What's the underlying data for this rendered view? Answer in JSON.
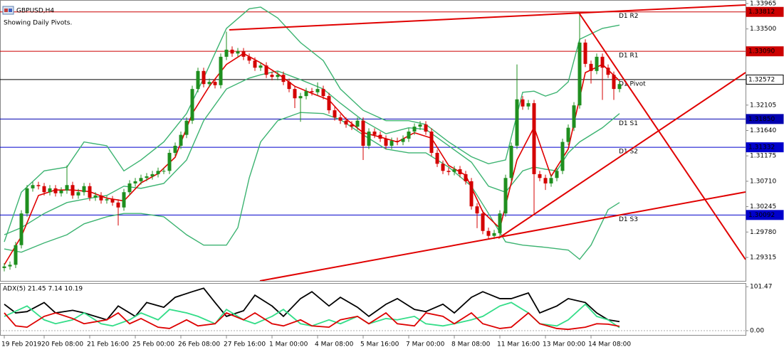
{
  "chart_data": {
    "type": "candlestick",
    "title": "GBPUSD,H4",
    "subtitle": "Showing Daily Pivots.",
    "up_color": "#1f8f1f",
    "down_color": "#d40000",
    "categories": [
      "19 Feb 2019",
      null,
      null,
      null,
      null,
      null,
      null,
      "20 Feb 08:00",
      null,
      null,
      null,
      null,
      null,
      null,
      null,
      "21 Feb 16:00",
      null,
      null,
      null,
      null,
      null,
      null,
      null,
      "25 Feb 00:00",
      null,
      null,
      null,
      null,
      null,
      null,
      null,
      "26 Feb 08:00",
      null,
      null,
      null,
      null,
      null,
      null,
      null,
      "27 Feb 16:00",
      null,
      null,
      null,
      null,
      null,
      null,
      null,
      "1 Mar 00:00",
      null,
      null,
      null,
      null,
      null,
      null,
      null,
      "4 Mar 08:00",
      null,
      null,
      null,
      null,
      null,
      null,
      null,
      "5 Mar 16:00",
      null,
      null,
      null,
      null,
      null,
      null,
      null,
      "7 Mar 00:00",
      null,
      null,
      null,
      null,
      null,
      null,
      null,
      "8 Mar 08:00",
      null,
      null,
      null,
      null,
      null,
      null,
      null,
      "11 Mar 16:00",
      null,
      null,
      null,
      null,
      null,
      null,
      null,
      "13 Mar 00:00",
      null,
      null,
      null,
      null,
      null,
      null,
      null,
      "14 Mar 08:00",
      null,
      null,
      null,
      null,
      null
    ],
    "open": [
      1.2912,
      1.2915,
      1.2918,
      1.2954,
      1.3012,
      1.3058,
      1.3064,
      1.3062,
      1.3051,
      1.3058,
      1.3049,
      1.3054,
      1.3064,
      1.3045,
      1.3051,
      1.3062,
      1.3041,
      1.3045,
      1.3036,
      1.3038,
      1.3032,
      1.3023,
      1.3051,
      1.3067,
      1.3071,
      1.3077,
      1.308,
      1.3084,
      1.309,
      1.309,
      1.3123,
      1.3136,
      1.3156,
      1.3182,
      1.324,
      1.3273,
      1.3249,
      1.3253,
      1.3247,
      1.3299,
      1.3312,
      1.3305,
      1.3309,
      1.3299,
      1.3292,
      1.3279,
      1.3283,
      1.3266,
      1.3262,
      1.3266,
      1.3253,
      1.324,
      1.3223,
      1.3227,
      1.3236,
      1.3234,
      1.324,
      1.3227,
      1.3201,
      1.3188,
      1.3182,
      1.3175,
      1.3171,
      1.3182,
      1.3136,
      1.3162,
      1.3156,
      1.3149,
      1.3136,
      1.3145,
      1.3143,
      1.3149,
      1.3162,
      1.3171,
      1.3175,
      1.3162,
      1.3123,
      1.3103,
      1.309,
      1.3088,
      1.3093,
      1.3084,
      1.3071,
      1.3025,
      1.3012,
      1.298,
      1.2971,
      1.2976,
      1.3012,
      1.3077,
      1.3136,
      1.3221,
      1.3208,
      1.3214,
      1.3084,
      1.3077,
      1.3067,
      1.3077,
      1.309,
      1.3143,
      1.3169,
      1.321,
      1.3325,
      1.3286,
      1.3273,
      1.3299,
      1.3279,
      1.3266,
      1.324
    ],
    "high": [
      1.2921,
      1.2924,
      1.296,
      1.3018,
      1.3064,
      1.307,
      1.307,
      1.3068,
      1.3064,
      1.3064,
      1.306,
      1.31,
      1.307,
      1.3057,
      1.3068,
      1.3068,
      1.3051,
      1.3051,
      1.3044,
      1.3044,
      1.3038,
      1.3057,
      1.3073,
      1.3077,
      1.3083,
      1.3086,
      1.309,
      1.3096,
      1.3096,
      1.3129,
      1.3142,
      1.3162,
      1.3188,
      1.3246,
      1.3279,
      1.3279,
      1.3259,
      1.3259,
      1.3305,
      1.3345,
      1.3318,
      1.3315,
      1.3315,
      1.3305,
      1.3298,
      1.3289,
      1.3289,
      1.3272,
      1.3272,
      1.3272,
      1.3259,
      1.3246,
      1.3233,
      1.3242,
      1.3242,
      1.3252,
      1.3246,
      1.3233,
      1.3207,
      1.3194,
      1.3188,
      1.3181,
      1.3188,
      1.3188,
      1.3168,
      1.3168,
      1.3162,
      1.3155,
      1.3151,
      1.3151,
      1.3155,
      1.3168,
      1.3177,
      1.3181,
      1.3181,
      1.3168,
      1.3129,
      1.3109,
      1.3096,
      1.3099,
      1.3099,
      1.309,
      1.3077,
      1.3031,
      1.3018,
      1.2986,
      1.2982,
      1.3018,
      1.3083,
      1.3142,
      1.3285,
      1.3227,
      1.322,
      1.322,
      1.309,
      1.3083,
      1.3083,
      1.3096,
      1.3149,
      1.3175,
      1.3216,
      1.3381,
      1.3331,
      1.3292,
      1.3305,
      1.3305,
      1.3285,
      1.3272,
      1.3255
    ],
    "low": [
      1.2906,
      1.2909,
      1.2912,
      1.2948,
      1.3006,
      1.3052,
      1.3056,
      1.3045,
      1.3045,
      1.3043,
      1.3043,
      1.3048,
      1.3039,
      1.3039,
      1.3045,
      1.3035,
      1.3035,
      1.303,
      1.303,
      1.3026,
      1.299,
      1.3017,
      1.3045,
      1.3061,
      1.3065,
      1.3071,
      1.3074,
      1.3078,
      1.3084,
      1.3084,
      1.3117,
      1.313,
      1.315,
      1.3176,
      1.3234,
      1.3243,
      1.3243,
      1.3241,
      1.3241,
      1.3293,
      1.3299,
      1.3299,
      1.3293,
      1.3286,
      1.3273,
      1.3273,
      1.326,
      1.3256,
      1.3256,
      1.3247,
      1.3234,
      1.3205,
      1.318,
      1.3221,
      1.3228,
      1.3228,
      1.3221,
      1.3195,
      1.3182,
      1.3176,
      1.3169,
      1.3165,
      1.3165,
      1.311,
      1.313,
      1.315,
      1.3143,
      1.313,
      1.313,
      1.3137,
      1.3137,
      1.3143,
      1.3156,
      1.3165,
      1.3156,
      1.3117,
      1.3097,
      1.3084,
      1.3082,
      1.3082,
      1.3078,
      1.3065,
      1.3019,
      1.2985,
      1.2974,
      1.2965,
      1.2965,
      1.297,
      1.3006,
      1.3071,
      1.313,
      1.3202,
      1.3202,
      1.3012,
      1.3071,
      1.3055,
      1.3061,
      1.3071,
      1.3084,
      1.3137,
      1.3163,
      1.3204,
      1.328,
      1.325,
      1.3267,
      1.322,
      1.326,
      1.322,
      1.3234
    ],
    "close": [
      1.2915,
      1.2918,
      1.2954,
      1.3012,
      1.3058,
      1.3064,
      1.3062,
      1.3051,
      1.3058,
      1.3049,
      1.3054,
      1.3064,
      1.3045,
      1.3051,
      1.3062,
      1.3041,
      1.3045,
      1.3036,
      1.3038,
      1.3032,
      1.3023,
      1.3051,
      1.3067,
      1.3071,
      1.3077,
      1.308,
      1.3084,
      1.309,
      1.309,
      1.3123,
      1.3136,
      1.3156,
      1.3182,
      1.324,
      1.3273,
      1.3249,
      1.3253,
      1.3247,
      1.3299,
      1.3312,
      1.3305,
      1.3309,
      1.3299,
      1.3292,
      1.3279,
      1.3283,
      1.3266,
      1.3262,
      1.3266,
      1.3253,
      1.324,
      1.3223,
      1.3227,
      1.3236,
      1.3234,
      1.324,
      1.3227,
      1.3201,
      1.3188,
      1.3182,
      1.3175,
      1.3171,
      1.3182,
      1.3136,
      1.3162,
      1.3156,
      1.3149,
      1.3136,
      1.3145,
      1.3143,
      1.3149,
      1.3162,
      1.3171,
      1.3175,
      1.3162,
      1.3123,
      1.3103,
      1.309,
      1.3088,
      1.3093,
      1.3084,
      1.3071,
      1.3025,
      1.3012,
      1.298,
      1.2971,
      1.2976,
      1.3012,
      1.3077,
      1.3136,
      1.3221,
      1.3208,
      1.3214,
      1.3084,
      1.3077,
      1.3067,
      1.3077,
      1.309,
      1.3143,
      1.3169,
      1.321,
      1.3325,
      1.3286,
      1.3273,
      1.3299,
      1.3279,
      1.3266,
      1.324,
      1.3249
    ],
    "ylim": [
      1.28885,
      1.3403
    ],
    "yticks": [
      1.33965,
      {
        "value": 1.335,
        "label": "1.33500"
      },
      1.32105,
      {
        "value": 1.3164,
        "label": "1.31640"
      },
      1.31175,
      {
        "value": 1.3071,
        "label": "1.30710"
      },
      1.30245,
      {
        "value": 1.2978,
        "label": "1.29780"
      },
      1.29315
    ],
    "overlays": [
      {
        "color": "#3cb371",
        "x": [
          0,
          3,
          7,
          11,
          14,
          18,
          21,
          24,
          28,
          32,
          35,
          39,
          43,
          45,
          48,
          52,
          56,
          59,
          63,
          67,
          71,
          74,
          78,
          82,
          85,
          88,
          91,
          93,
          95,
          97,
          99,
          101,
          105,
          108
        ],
        "values": [
          1.296,
          1.3051,
          1.309,
          1.3097,
          1.3143,
          1.3136,
          1.309,
          1.311,
          1.3143,
          1.3195,
          1.326,
          1.3351,
          1.3387,
          1.339,
          1.337,
          1.3325,
          1.3292,
          1.324,
          1.3201,
          1.3182,
          1.3182,
          1.3175,
          1.3143,
          1.3116,
          1.3103,
          1.311,
          1.3234,
          1.3236,
          1.3227,
          1.3234,
          1.3253,
          1.3331,
          1.3351,
          1.3357
        ]
      },
      {
        "color": "#3cb371",
        "x": [
          0,
          3,
          7,
          11,
          14,
          18,
          21,
          24,
          28,
          32,
          35,
          39,
          43,
          45,
          48,
          52,
          56,
          59,
          63,
          67,
          71,
          74,
          78,
          82,
          85,
          88,
          91,
          93,
          95,
          97,
          99,
          101,
          105,
          108
        ],
        "values": [
          1.2973,
          1.2986,
          1.3012,
          1.3032,
          1.3038,
          1.3045,
          1.3062,
          1.3058,
          1.3067,
          1.311,
          1.3182,
          1.324,
          1.326,
          1.3266,
          1.3273,
          1.3257,
          1.324,
          1.3214,
          1.3182,
          1.3158,
          1.3169,
          1.3166,
          1.3136,
          1.3106,
          1.3062,
          1.3051,
          1.309,
          1.3097,
          1.3093,
          1.309,
          1.3123,
          1.3143,
          1.3169,
          1.3195
        ]
      },
      {
        "color": "#3cb371",
        "x": [
          0,
          3,
          7,
          11,
          14,
          18,
          21,
          24,
          28,
          32,
          35,
          39,
          41,
          43,
          45,
          48,
          52,
          56,
          59,
          63,
          67,
          71,
          74,
          78,
          82,
          85,
          88,
          91,
          95,
          99,
          101,
          103,
          106,
          108
        ],
        "values": [
          1.2947,
          1.2941,
          1.2958,
          1.2973,
          1.2993,
          1.3006,
          1.3012,
          1.3012,
          1.3006,
          1.2973,
          1.2954,
          1.2954,
          1.2986,
          1.3077,
          1.3143,
          1.3182,
          1.3197,
          1.3195,
          1.3184,
          1.3156,
          1.313,
          1.3123,
          1.3123,
          1.3097,
          1.3062,
          1.3012,
          1.296,
          1.2954,
          1.295,
          1.2945,
          1.2928,
          1.2954,
          1.3019,
          1.3032
        ]
      },
      {
        "color": "#e00000",
        "x": [
          0,
          3,
          6,
          9,
          12,
          15,
          18,
          21,
          24,
          27,
          30,
          33,
          36,
          39,
          42,
          45,
          48,
          51,
          54,
          57,
          60,
          63,
          66,
          69,
          72,
          75,
          78,
          81,
          84,
          87,
          90,
          93,
          96,
          99,
          102,
          105,
          108
        ],
        "values": [
          1.2918,
          1.297,
          1.3045,
          1.3055,
          1.3055,
          1.3052,
          1.304,
          1.3035,
          1.3068,
          1.3085,
          1.3115,
          1.3195,
          1.3245,
          1.3285,
          1.3305,
          1.3288,
          1.3268,
          1.3245,
          1.3232,
          1.322,
          1.3185,
          1.316,
          1.3152,
          1.3143,
          1.316,
          1.315,
          1.31,
          1.3082,
          1.3015,
          1.2985,
          1.311,
          1.317,
          1.308,
          1.313,
          1.327,
          1.3285,
          1.3255
        ]
      }
    ],
    "pivots": [
      {
        "name": "D1 R2",
        "value": 1.33812,
        "color": "#cc0000"
      },
      {
        "name": "D1 R1",
        "value": 1.3309,
        "value_label": "1.33090",
        "color": "#cc0000"
      },
      {
        "name": "D1 Pivot",
        "value": 1.32572,
        "color": "#000000"
      },
      {
        "name": "D1 S1",
        "value": 1.3185,
        "value_label": "1.31850",
        "color": "#0000b0"
      },
      {
        "name": "D1 S2",
        "value": 1.31332,
        "color": "#0000cc"
      },
      {
        "name": "D1 S3",
        "value": 1.30092,
        "color": "#0000cc"
      }
    ],
    "indicator": {
      "type": "line",
      "title": "ADX(5) 21.45 7.14 10.19",
      "ylim": [
        -11.5,
        110
      ],
      "yticks": [
        101.47,
        {
          "value": 0,
          "label": "0.00"
        }
      ],
      "series": [
        {
          "color": "#000000",
          "x": [
            0,
            2,
            4,
            7,
            9,
            12,
            14,
            18,
            20,
            23,
            25,
            28,
            30,
            33,
            35,
            37,
            39,
            42,
            44,
            47,
            49,
            52,
            54,
            57,
            59,
            62,
            64,
            67,
            69,
            72,
            74,
            77,
            79,
            82,
            84,
            87,
            89,
            92,
            94,
            97,
            99,
            102,
            104,
            106,
            108
          ],
          "values": [
            61,
            41,
            44,
            65,
            41,
            47,
            41,
            25,
            57,
            33,
            65,
            54,
            77,
            90,
            98,
            65,
            33,
            46,
            82,
            57,
            33,
            74,
            90,
            57,
            77,
            54,
            33,
            61,
            74,
            49,
            44,
            61,
            41,
            77,
            90,
            74,
            74,
            87,
            41,
            57,
            74,
            65,
            41,
            25,
            21
          ]
        },
        {
          "color": "#33dd88",
          "x": [
            0,
            4,
            7,
            9,
            12,
            14,
            17,
            19,
            22,
            24,
            27,
            29,
            32,
            34,
            37,
            39,
            42,
            44,
            47,
            49,
            52,
            54,
            57,
            59,
            62,
            64,
            67,
            69,
            72,
            74,
            77,
            79,
            82,
            84,
            87,
            89,
            92,
            94,
            97,
            99,
            102,
            104,
            106,
            108
          ],
          "values": [
            33,
            57,
            25,
            16,
            25,
            41,
            16,
            11,
            25,
            41,
            25,
            49,
            41,
            33,
            16,
            49,
            25,
            16,
            33,
            49,
            16,
            11,
            25,
            16,
            33,
            16,
            28,
            25,
            33,
            16,
            11,
            16,
            25,
            33,
            57,
            65,
            41,
            16,
            11,
            25,
            61,
            33,
            25,
            7
          ]
        },
        {
          "color": "#dd0000",
          "x": [
            0,
            2,
            4,
            7,
            9,
            12,
            14,
            18,
            20,
            22,
            24,
            27,
            29,
            32,
            34,
            37,
            39,
            42,
            44,
            47,
            49,
            52,
            54,
            57,
            59,
            62,
            64,
            67,
            69,
            72,
            74,
            77,
            79,
            82,
            84,
            87,
            89,
            92,
            94,
            97,
            99,
            102,
            104,
            106,
            108
          ],
          "values": [
            41,
            11,
            8,
            33,
            41,
            28,
            16,
            25,
            41,
            16,
            28,
            8,
            5,
            25,
            11,
            16,
            41,
            25,
            41,
            16,
            11,
            25,
            11,
            8,
            25,
            33,
            16,
            41,
            16,
            11,
            41,
            33,
            16,
            41,
            16,
            5,
            8,
            41,
            16,
            5,
            3,
            8,
            16,
            15,
            10
          ]
        }
      ]
    }
  }
}
